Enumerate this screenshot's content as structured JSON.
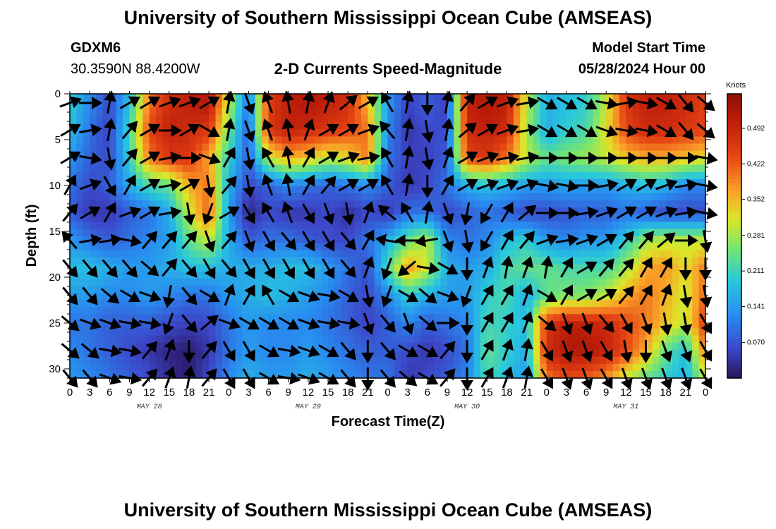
{
  "page": {
    "title_top": "University of Southern Mississippi Ocean Cube (AMSEAS)",
    "title_bottom": "University of Southern Mississippi Ocean Cube (AMSEAS)",
    "station": "GDXM6",
    "coordinates": "30.3590N  88.4200W",
    "subtitle": "2-D Currents Speed-Magnitude",
    "model_start_label": "Model Start Time",
    "model_start_value": "05/28/2024 Hour 00"
  },
  "chart_data": {
    "type": "heatmap",
    "xlabel": "Forecast Time(Z)",
    "ylabel": "Depth (ft)",
    "colorbar_label": "Knots",
    "colorbar_ticks": [
      "0.070",
      "0.141",
      "0.211",
      "0.281",
      "0.352",
      "0.422",
      "0.492"
    ],
    "colorbar_range": [
      0,
      0.56
    ],
    "x_tick_labels": [
      "0",
      "3",
      "6",
      "9",
      "12",
      "15",
      "18",
      "21",
      "0",
      "3",
      "6",
      "9",
      "12",
      "15",
      "18",
      "21",
      "0",
      "3",
      "6",
      "9",
      "12",
      "15",
      "18",
      "21",
      "0",
      "3",
      "6",
      "9",
      "12",
      "15",
      "18",
      "21",
      "0"
    ],
    "date_labels": [
      "MAY 28",
      "MAY 29",
      "MAY 30",
      "MAY 31"
    ],
    "xlim_hours": [
      0,
      96
    ],
    "y_tick_labels": [
      "0",
      "5",
      "10",
      "15",
      "20",
      "25",
      "30"
    ],
    "ylim_ft": [
      0,
      31
    ],
    "depths_ft": [
      1,
      4,
      7,
      10,
      13,
      16,
      19,
      22,
      25,
      28,
      31
    ],
    "time_hours": [
      0,
      3,
      6,
      9,
      12,
      15,
      18,
      21,
      24,
      27,
      30,
      33,
      36,
      39,
      42,
      45,
      48,
      51,
      54,
      57,
      60,
      63,
      66,
      69,
      72,
      75,
      78,
      81,
      84,
      87,
      90,
      93,
      96
    ],
    "speed_knots": [
      [
        0.2,
        0.12,
        0.06,
        0.18,
        0.4,
        0.48,
        0.5,
        0.52,
        0.3,
        0.1,
        0.45,
        0.5,
        0.52,
        0.5,
        0.48,
        0.35,
        0.14,
        0.05,
        0.08,
        0.05,
        0.5,
        0.52,
        0.5,
        0.3,
        0.16,
        0.18,
        0.2,
        0.3,
        0.46,
        0.5,
        0.5,
        0.48,
        0.45
      ],
      [
        0.18,
        0.1,
        0.05,
        0.22,
        0.44,
        0.5,
        0.48,
        0.46,
        0.25,
        0.08,
        0.46,
        0.5,
        0.48,
        0.46,
        0.44,
        0.4,
        0.12,
        0.04,
        0.06,
        0.06,
        0.48,
        0.5,
        0.48,
        0.28,
        0.16,
        0.2,
        0.22,
        0.32,
        0.44,
        0.48,
        0.48,
        0.46,
        0.44
      ],
      [
        0.14,
        0.08,
        0.06,
        0.2,
        0.4,
        0.46,
        0.46,
        0.36,
        0.2,
        0.08,
        0.3,
        0.36,
        0.34,
        0.3,
        0.32,
        0.4,
        0.1,
        0.05,
        0.05,
        0.08,
        0.44,
        0.46,
        0.4,
        0.3,
        0.24,
        0.26,
        0.28,
        0.3,
        0.34,
        0.36,
        0.36,
        0.34,
        0.32
      ],
      [
        0.1,
        0.06,
        0.08,
        0.16,
        0.22,
        0.24,
        0.36,
        0.4,
        0.16,
        0.06,
        0.08,
        0.12,
        0.1,
        0.08,
        0.1,
        0.12,
        0.08,
        0.04,
        0.06,
        0.1,
        0.16,
        0.18,
        0.16,
        0.14,
        0.14,
        0.15,
        0.14,
        0.14,
        0.16,
        0.18,
        0.16,
        0.12,
        0.12
      ],
      [
        0.08,
        0.04,
        0.04,
        0.08,
        0.1,
        0.16,
        0.3,
        0.42,
        0.14,
        0.02,
        0.06,
        0.04,
        0.04,
        0.06,
        0.03,
        0.06,
        0.04,
        0.1,
        0.1,
        0.06,
        0.08,
        0.1,
        0.08,
        0.06,
        0.06,
        0.07,
        0.08,
        0.08,
        0.1,
        0.08,
        0.06,
        0.06,
        0.06
      ],
      [
        0.14,
        0.1,
        0.08,
        0.1,
        0.12,
        0.14,
        0.24,
        0.3,
        0.16,
        0.08,
        0.1,
        0.1,
        0.08,
        0.06,
        0.06,
        0.1,
        0.16,
        0.24,
        0.3,
        0.12,
        0.1,
        0.12,
        0.18,
        0.2,
        0.14,
        0.12,
        0.14,
        0.14,
        0.2,
        0.28,
        0.3,
        0.3,
        0.3
      ],
      [
        0.18,
        0.18,
        0.16,
        0.14,
        0.14,
        0.16,
        0.18,
        0.18,
        0.16,
        0.16,
        0.16,
        0.18,
        0.18,
        0.14,
        0.1,
        0.06,
        0.22,
        0.38,
        0.3,
        0.16,
        0.14,
        0.16,
        0.22,
        0.24,
        0.24,
        0.22,
        0.22,
        0.22,
        0.28,
        0.36,
        0.38,
        0.32,
        0.4
      ],
      [
        0.14,
        0.14,
        0.12,
        0.12,
        0.14,
        0.12,
        0.1,
        0.1,
        0.14,
        0.16,
        0.18,
        0.16,
        0.14,
        0.12,
        0.08,
        0.06,
        0.12,
        0.2,
        0.16,
        0.14,
        0.14,
        0.2,
        0.22,
        0.16,
        0.24,
        0.26,
        0.26,
        0.3,
        0.36,
        0.4,
        0.36,
        0.3,
        0.42
      ],
      [
        0.1,
        0.1,
        0.08,
        0.08,
        0.08,
        0.06,
        0.05,
        0.06,
        0.1,
        0.14,
        0.12,
        0.12,
        0.12,
        0.1,
        0.08,
        0.05,
        0.08,
        0.12,
        0.08,
        0.1,
        0.12,
        0.22,
        0.2,
        0.18,
        0.46,
        0.5,
        0.5,
        0.48,
        0.44,
        0.4,
        0.34,
        0.3,
        0.46
      ],
      [
        0.12,
        0.1,
        0.08,
        0.06,
        0.04,
        0.02,
        0.01,
        0.04,
        0.1,
        0.14,
        0.12,
        0.12,
        0.14,
        0.12,
        0.1,
        0.08,
        0.08,
        0.06,
        0.04,
        0.06,
        0.1,
        0.24,
        0.2,
        0.16,
        0.48,
        0.52,
        0.52,
        0.5,
        0.44,
        0.36,
        0.24,
        0.18,
        0.4
      ],
      [
        0.14,
        0.12,
        0.1,
        0.08,
        0.06,
        0.03,
        0.01,
        0.06,
        0.12,
        0.16,
        0.14,
        0.14,
        0.16,
        0.14,
        0.12,
        0.1,
        0.1,
        0.04,
        0.06,
        0.08,
        0.12,
        0.22,
        0.18,
        0.14,
        0.4,
        0.44,
        0.42,
        0.38,
        0.3,
        0.24,
        0.2,
        0.16,
        0.3
      ]
    ],
    "direction_deg": [
      [
        70,
        90,
        10,
        60,
        60,
        70,
        70,
        60,
        10,
        160,
        340,
        350,
        10,
        20,
        50,
        60,
        330,
        10,
        180,
        10,
        40,
        60,
        70,
        80,
        120,
        120,
        120,
        100,
        80,
        100,
        120,
        140,
        130
      ],
      [
        60,
        80,
        10,
        40,
        60,
        90,
        60,
        120,
        10,
        160,
        340,
        350,
        20,
        60,
        60,
        70,
        320,
        10,
        170,
        10,
        50,
        60,
        70,
        80,
        120,
        120,
        120,
        110,
        100,
        100,
        120,
        140,
        130
      ],
      [
        60,
        100,
        170,
        40,
        60,
        80,
        90,
        110,
        30,
        170,
        330,
        350,
        30,
        60,
        70,
        80,
        330,
        10,
        170,
        20,
        60,
        70,
        80,
        80,
        90,
        90,
        90,
        90,
        90,
        90,
        90,
        90,
        100
      ],
      [
        30,
        70,
        150,
        30,
        60,
        80,
        60,
        170,
        40,
        170,
        340,
        350,
        30,
        40,
        60,
        60,
        330,
        10,
        180,
        30,
        60,
        70,
        70,
        70,
        100,
        100,
        90,
        80,
        60,
        60,
        70,
        80,
        100
      ],
      [
        40,
        60,
        30,
        70,
        60,
        80,
        170,
        200,
        60,
        150,
        330,
        340,
        150,
        160,
        170,
        20,
        310,
        330,
        10,
        160,
        190,
        210,
        30,
        50,
        90,
        90,
        80,
        70,
        60,
        60,
        70,
        80,
        100
      ],
      [
        320,
        80,
        80,
        100,
        40,
        40,
        40,
        160,
        40,
        160,
        150,
        140,
        150,
        150,
        140,
        30,
        280,
        270,
        260,
        160,
        170,
        210,
        30,
        40,
        70,
        80,
        70,
        60,
        40,
        40,
        50,
        90,
        170
      ],
      [
        140,
        140,
        140,
        140,
        130,
        40,
        140,
        150,
        140,
        150,
        150,
        150,
        150,
        150,
        140,
        20,
        200,
        230,
        100,
        120,
        180,
        20,
        10,
        20,
        10,
        30,
        60,
        40,
        40,
        30,
        30,
        180,
        180
      ],
      [
        140,
        140,
        130,
        120,
        110,
        190,
        140,
        120,
        20,
        30,
        330,
        120,
        110,
        100,
        120,
        170,
        200,
        120,
        130,
        110,
        200,
        30,
        30,
        20,
        120,
        30,
        60,
        60,
        40,
        30,
        20,
        170,
        170
      ],
      [
        130,
        110,
        110,
        100,
        100,
        200,
        140,
        50,
        110,
        120,
        120,
        120,
        110,
        100,
        100,
        160,
        140,
        160,
        130,
        90,
        180,
        30,
        30,
        20,
        130,
        160,
        160,
        140,
        150,
        160,
        170,
        170,
        150
      ],
      [
        130,
        130,
        100,
        100,
        40,
        20,
        180,
        40,
        150,
        150,
        120,
        100,
        110,
        120,
        140,
        180,
        140,
        120,
        120,
        40,
        180,
        30,
        20,
        10,
        150,
        160,
        160,
        150,
        170,
        180,
        160,
        160,
        150
      ],
      [
        140,
        140,
        110,
        100,
        40,
        20,
        10,
        40,
        150,
        150,
        120,
        100,
        110,
        120,
        140,
        180,
        140,
        130,
        120,
        40,
        180,
        30,
        20,
        10,
        150,
        160,
        160,
        150,
        160,
        160,
        160,
        160,
        150
      ]
    ]
  }
}
